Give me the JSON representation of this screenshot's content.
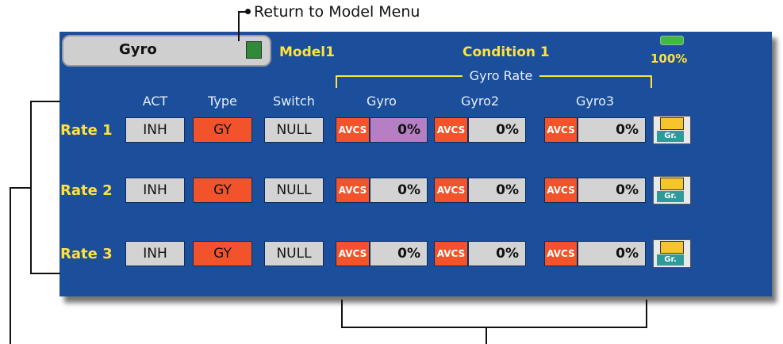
{
  "callout": "Return to Model Menu",
  "header": {
    "title": "Gyro",
    "model": "Model1",
    "condition": "Condition 1",
    "battery": "100%"
  },
  "group_label": "Gyro Rate",
  "columns": [
    "ACT",
    "Type",
    "Switch",
    "Gyro",
    "Gyro2",
    "Gyro3"
  ],
  "rows": [
    {
      "label": "Rate 1",
      "act": "INH",
      "type": "GY",
      "switch": "NULL",
      "gyros": [
        {
          "mode": "AVCS",
          "rate": "0%"
        },
        {
          "mode": "AVCS",
          "rate": "0%"
        },
        {
          "mode": "AVCS",
          "rate": "0%"
        }
      ],
      "button": "Gr."
    },
    {
      "label": "Rate 2",
      "act": "INH",
      "type": "GY",
      "switch": "NULL",
      "gyros": [
        {
          "mode": "AVCS",
          "rate": "0%"
        },
        {
          "mode": "AVCS",
          "rate": "0%"
        },
        {
          "mode": "AVCS",
          "rate": "0%"
        }
      ],
      "button": "Gr."
    },
    {
      "label": "Rate 3",
      "act": "INH",
      "type": "GY",
      "switch": "NULL",
      "gyros": [
        {
          "mode": "AVCS",
          "rate": "0%"
        },
        {
          "mode": "AVCS",
          "rate": "0%"
        },
        {
          "mode": "AVCS",
          "rate": "0%"
        }
      ],
      "button": "Gr."
    }
  ]
}
